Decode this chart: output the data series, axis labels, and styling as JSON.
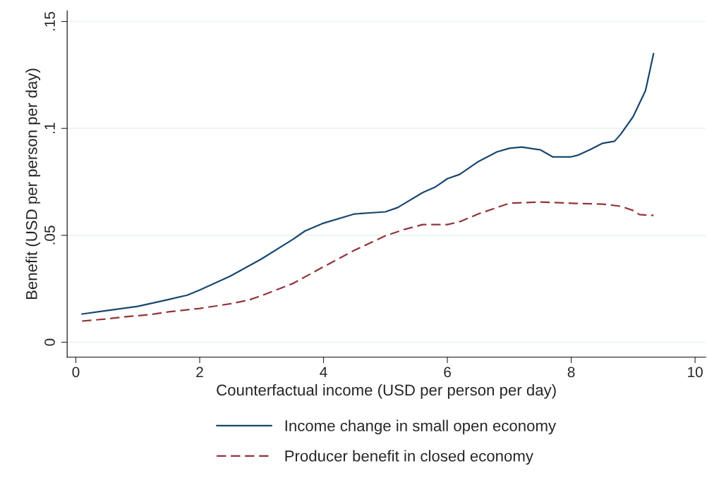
{
  "chart_data": {
    "type": "line",
    "xlabel": "Counterfactual income (USD per person per day)",
    "ylabel": "Benefit (USD per person per day)",
    "xlim": [
      -0.14,
      10.17
    ],
    "xticks": [
      0,
      2,
      4,
      6,
      8,
      10
    ],
    "ylim": [
      -0.007,
      0.155
    ],
    "yticks": [
      {
        "value": 0,
        "label": "0"
      },
      {
        "value": 0.05,
        "label": ".05"
      },
      {
        "value": 0.1,
        "label": ".1"
      },
      {
        "value": 0.15,
        "label": ".15"
      }
    ],
    "grid": "y",
    "legend": "bottom",
    "series": [
      {
        "name": "Income change in small open economy",
        "color": "#1a476f",
        "line_style": "solid",
        "x": [
          0.1,
          0.5,
          1.0,
          1.5,
          1.8,
          2.0,
          2.5,
          3.0,
          3.5,
          3.7,
          4.0,
          4.5,
          5.0,
          5.2,
          5.6,
          5.8,
          6.0,
          6.2,
          6.5,
          6.8,
          7.0,
          7.2,
          7.5,
          7.7,
          8.0,
          8.1,
          8.3,
          8.5,
          8.7,
          8.8,
          9.0,
          9.2,
          9.33
        ],
        "values": [
          0.0132,
          0.0148,
          0.0168,
          0.02,
          0.022,
          0.0244,
          0.031,
          0.039,
          0.048,
          0.052,
          0.0557,
          0.06,
          0.061,
          0.063,
          0.07,
          0.0725,
          0.0765,
          0.0785,
          0.0845,
          0.089,
          0.0907,
          0.0913,
          0.09,
          0.0867,
          0.0867,
          0.0874,
          0.09,
          0.093,
          0.094,
          0.0973,
          0.1055,
          0.1177,
          0.135
        ]
      },
      {
        "name": "Producer benefit in closed economy",
        "color": "#90353b",
        "line_style": "dashed",
        "x": [
          0.1,
          0.5,
          0.8,
          1.2,
          1.5,
          2.0,
          2.5,
          2.8,
          3.0,
          3.5,
          4.0,
          4.5,
          5.0,
          5.3,
          5.6,
          6.0,
          6.2,
          6.5,
          7.0,
          7.5,
          8.0,
          8.5,
          8.8,
          9.0,
          9.1,
          9.33
        ],
        "values": [
          0.0099,
          0.0109,
          0.0119,
          0.0129,
          0.0142,
          0.0158,
          0.018,
          0.0198,
          0.0218,
          0.0274,
          0.0353,
          0.043,
          0.0498,
          0.0527,
          0.055,
          0.055,
          0.0564,
          0.06,
          0.065,
          0.0656,
          0.065,
          0.0646,
          0.0636,
          0.0616,
          0.0597,
          0.0593
        ]
      }
    ]
  }
}
